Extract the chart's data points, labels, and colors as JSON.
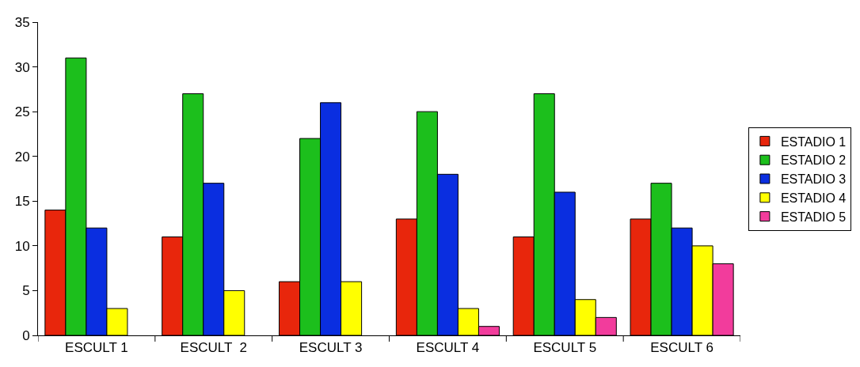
{
  "chart_data": {
    "type": "bar",
    "categories": [
      "ESCULT 1",
      "ESCULT  2",
      "ESCULT 3",
      "ESCULT 4",
      "ESCULT 5",
      "ESCULT 6"
    ],
    "series": [
      {
        "name": "ESTADIO 1",
        "color": "#e8260c",
        "values": [
          14,
          11,
          6,
          13,
          11,
          13
        ]
      },
      {
        "name": "ESTADIO 2",
        "color": "#1cbf1c",
        "values": [
          31,
          27,
          22,
          25,
          27,
          17
        ]
      },
      {
        "name": "ESTADIO 3",
        "color": "#0a2ee0",
        "values": [
          12,
          17,
          26,
          18,
          16,
          12
        ]
      },
      {
        "name": "ESTADIO 4",
        "color": "#ffff00",
        "values": [
          3,
          5,
          6,
          3,
          4,
          10
        ]
      },
      {
        "name": "ESTADIO 5",
        "color": "#f23c9c",
        "values": [
          null,
          null,
          null,
          1,
          2,
          8
        ]
      }
    ],
    "ylim": [
      0,
      35
    ],
    "yticks": [
      0,
      5,
      10,
      15,
      20,
      25,
      30,
      35
    ],
    "grid": false,
    "legend": "right"
  }
}
